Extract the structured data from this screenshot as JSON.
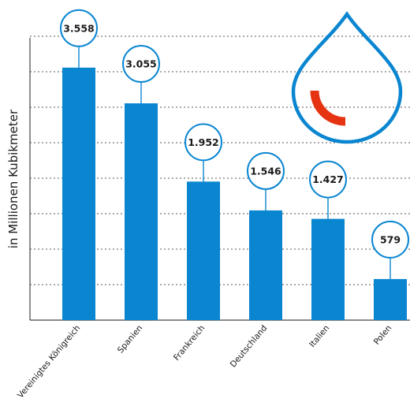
{
  "chart_data": {
    "type": "bar",
    "title": "",
    "xlabel": "",
    "ylabel": "in Millionen Kubikmeter",
    "categories": [
      "Vereinigtes Königreich",
      "Spanien",
      "Frankreich",
      "Deutschland",
      "Italien",
      "Polen"
    ],
    "values": [
      3558,
      3055,
      1952,
      1546,
      1427,
      579
    ],
    "value_labels": [
      "3.558",
      "3.055",
      "1.952",
      "1.546",
      "1.427",
      "579"
    ],
    "ylim": [
      0,
      4000
    ],
    "grid": true,
    "legend": "none"
  },
  "colors": {
    "bar": "#0a86d1",
    "drop_outline": "#0a86d1",
    "drop_accent": "#e63312"
  },
  "icons": {
    "decoration": "water-drop-icon"
  }
}
